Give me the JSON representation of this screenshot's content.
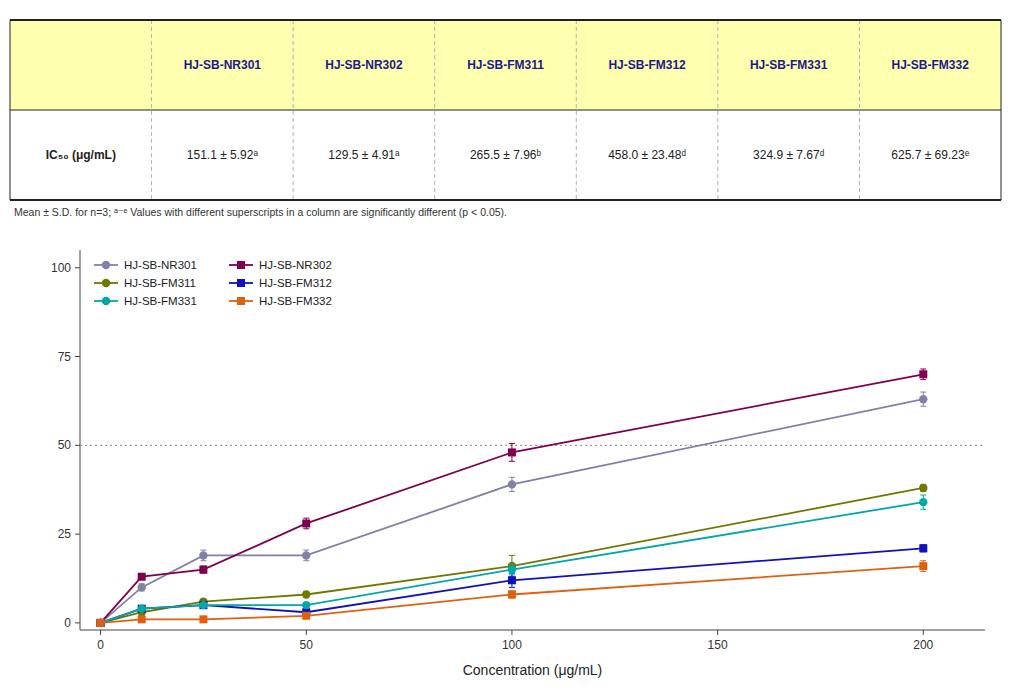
{
  "chart_data": [
    {
      "type": "table",
      "columns": [
        "HJ-SB-NR301",
        "HJ-SB-NR302",
        "HJ-SB-FM311",
        "HJ-SB-FM312",
        "HJ-SB-FM331",
        "HJ-SB-FM332"
      ],
      "rows": [
        {
          "name": "IC₅₀ (μg/mL)",
          "cells": [
            "151.1 ± 5.92ᵃ",
            "129.5 ± 4.91ᵃ",
            "265.5 ± 7.96ᵇ",
            "458.0 ± 23.48ᵈ",
            "324.9 ± 7.67ᵈ",
            "625.7 ± 69.23ᵉ"
          ]
        }
      ],
      "footnote": "Mean ± S.D. for n=3; ᵃ⁻ᵉ Values with different superscripts in a column are significantly different (p < 0.05).",
      "color": "#ffffb0"
    },
    {
      "type": "line",
      "xlabel": "Concentration (μg/mL)",
      "x": [
        0,
        10,
        25,
        50,
        100,
        200
      ],
      "series": [
        {
          "name": "HJ-SB-NR301",
          "color": "#8080a8",
          "marker": "circle",
          "values": [
            0,
            10,
            19,
            19,
            39,
            63
          ],
          "errors": [
            0.0,
            1.0,
            1.5,
            1.5,
            2.0,
            2.0
          ]
        },
        {
          "name": "HJ-SB-NR302",
          "color": "#800050",
          "marker": "square",
          "values": [
            0,
            13,
            15,
            28,
            48,
            70
          ],
          "errors": [
            0.0,
            0.8,
            1.0,
            1.5,
            2.5,
            1.5
          ]
        },
        {
          "name": "HJ-SB-FM311",
          "color": "#707800",
          "marker": "circle",
          "values": [
            0,
            3,
            6,
            8,
            16,
            38
          ],
          "errors": [
            0.0,
            0.5,
            0.5,
            0.8,
            3.0,
            1.0
          ]
        },
        {
          "name": "HJ-SB-FM312",
          "color": "#1010c0",
          "marker": "square",
          "values": [
            0,
            4,
            5,
            3,
            12,
            21
          ],
          "errors": [
            0.0,
            0.5,
            0.5,
            0.5,
            2.0,
            1.0
          ]
        },
        {
          "name": "HJ-SB-FM331",
          "color": "#00a8a8",
          "marker": "circle",
          "values": [
            0,
            4,
            5,
            5,
            15,
            34
          ],
          "errors": [
            0.0,
            0.5,
            0.5,
            0.5,
            1.5,
            2.0
          ]
        },
        {
          "name": "HJ-SB-FM332",
          "color": "#e06010",
          "marker": "square",
          "values": [
            0,
            1,
            1,
            2,
            8,
            16
          ],
          "errors": [
            0.0,
            0.3,
            0.3,
            0.5,
            1.0,
            1.5
          ]
        }
      ],
      "xlim": [
        -5,
        215
      ],
      "ylim": [
        -2,
        105
      ],
      "xticks": [
        0,
        50,
        100,
        150,
        200
      ],
      "yticks": [
        0,
        25,
        50,
        75,
        100
      ],
      "reference_y": 50,
      "grid": false,
      "legend": "upper-left"
    }
  ]
}
